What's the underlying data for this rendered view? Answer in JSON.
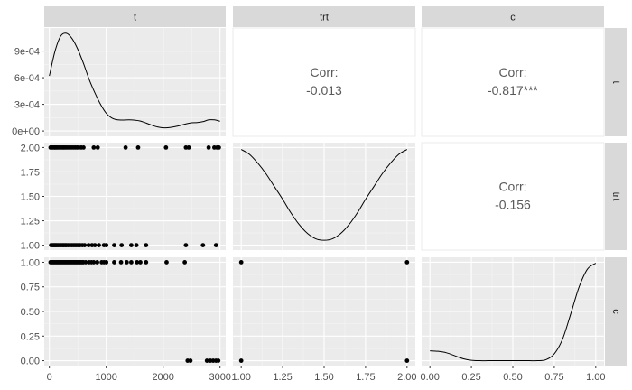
{
  "chart_data": {
    "type": "pairs",
    "variables": [
      "t",
      "trt",
      "c"
    ],
    "corr_label": "Corr:",
    "correlations": [
      {
        "row": "t",
        "col": "trt",
        "value": "-0.013"
      },
      {
        "row": "t",
        "col": "c",
        "value": "-0.817***"
      },
      {
        "row": "trt",
        "col": "c",
        "value": "-0.156"
      }
    ],
    "density_t": {
      "x": [
        0,
        100,
        200,
        300,
        400,
        500,
        600,
        700,
        800,
        900,
        1000,
        1100,
        1200,
        1300,
        1400,
        1500,
        1600,
        1700,
        1800,
        1900,
        2000,
        2100,
        2200,
        2300,
        2400,
        2500,
        2600,
        2700,
        2800,
        2900,
        3000
      ],
      "y": [
        0.00062,
        0.0009,
        0.00107,
        0.0011,
        0.00104,
        0.00092,
        0.00076,
        0.00058,
        0.00043,
        0.0003,
        0.0002,
        0.000145,
        0.000125,
        0.000123,
        0.000125,
        0.000122,
        0.000112,
        9e-05,
        6.5e-05,
        4.5e-05,
        3.5e-05,
        3.8e-05,
        4.8e-05,
        6.2e-05,
        8e-05,
        9.2e-05,
        9.5e-05,
        0.000105,
        0.000125,
        0.000125,
        0.00011
      ]
    },
    "density_trt": {
      "x": [
        1.0,
        1.05,
        1.1,
        1.15,
        1.2,
        1.25,
        1.3,
        1.35,
        1.4,
        1.45,
        1.5,
        1.55,
        1.6,
        1.65,
        1.7,
        1.75,
        1.8,
        1.85,
        1.9,
        1.95,
        2.0
      ],
      "y": [
        1.98,
        1.93,
        1.84,
        1.73,
        1.6,
        1.47,
        1.33,
        1.21,
        1.12,
        1.065,
        1.05,
        1.065,
        1.12,
        1.21,
        1.33,
        1.47,
        1.6,
        1.73,
        1.84,
        1.93,
        1.98
      ]
    },
    "density_c": {
      "x": [
        0.0,
        0.05,
        0.1,
        0.15,
        0.2,
        0.25,
        0.3,
        0.35,
        0.4,
        0.45,
        0.5,
        0.55,
        0.6,
        0.65,
        0.7,
        0.75,
        0.8,
        0.85,
        0.9,
        0.95,
        1.0
      ],
      "y": [
        0.1,
        0.095,
        0.08,
        0.05,
        0.02,
        0.004,
        0.0,
        0.0,
        0.0,
        0.0,
        0.0,
        0.0,
        0.0,
        0.0,
        0.01,
        0.07,
        0.22,
        0.48,
        0.75,
        0.93,
        0.99
      ]
    },
    "scatter_t_trt": {
      "x": [
        20,
        45,
        60,
        85,
        100,
        120,
        140,
        165,
        190,
        215,
        240,
        260,
        285,
        310,
        340,
        370,
        400,
        430,
        460,
        490,
        520,
        560,
        600,
        780,
        850,
        1340,
        1560,
        2050,
        2400,
        2450,
        2800,
        2900,
        2950,
        2980,
        30,
        55,
        75,
        95,
        115,
        135,
        160,
        185,
        210,
        235,
        255,
        280,
        300,
        330,
        360,
        390,
        420,
        450,
        480,
        510,
        540,
        580,
        620,
        690,
        750,
        800,
        870,
        960,
        1000,
        1140,
        1270,
        1440,
        1530,
        1700,
        2400,
        2700,
        2930
      ],
      "y": [
        2,
        2,
        2,
        2,
        2,
        2,
        2,
        2,
        2,
        2,
        2,
        2,
        2,
        2,
        2,
        2,
        2,
        2,
        2,
        2,
        2,
        2,
        2,
        2,
        2,
        2,
        2,
        2,
        2,
        2,
        2,
        2,
        2,
        2,
        1,
        1,
        1,
        1,
        1,
        1,
        1,
        1,
        1,
        1,
        1,
        1,
        1,
        1,
        1,
        1,
        1,
        1,
        1,
        1,
        1,
        1,
        1,
        1,
        1,
        1,
        1,
        1,
        1,
        1,
        1,
        1,
        1,
        1,
        1,
        1,
        1
      ]
    },
    "scatter_t_c": {
      "x": [
        20,
        40,
        60,
        80,
        100,
        120,
        140,
        160,
        180,
        200,
        220,
        240,
        260,
        280,
        300,
        320,
        340,
        360,
        380,
        400,
        420,
        440,
        460,
        480,
        500,
        520,
        540,
        560,
        580,
        600,
        640,
        700,
        740,
        780,
        840,
        920,
        960,
        1000,
        1140,
        1260,
        1360,
        1440,
        1540,
        1600,
        1700,
        2060,
        2380,
        2430,
        2480,
        2770,
        2830,
        2880,
        2930,
        2970
      ],
      "y": [
        1,
        1,
        1,
        1,
        1,
        1,
        1,
        1,
        1,
        1,
        1,
        1,
        1,
        1,
        1,
        1,
        1,
        1,
        1,
        1,
        1,
        1,
        1,
        1,
        1,
        1,
        1,
        1,
        1,
        1,
        1,
        1,
        1,
        1,
        1,
        1,
        1,
        1,
        1,
        1,
        1,
        1,
        1,
        1,
        1,
        1,
        1,
        0,
        0,
        0,
        0,
        0,
        0,
        0
      ]
    },
    "scatter_trt_c": {
      "x": [
        1,
        1,
        2,
        2
      ],
      "y": [
        1,
        0,
        1,
        0
      ]
    },
    "axes": {
      "t": {
        "range": [
          -90,
          3100
        ],
        "ticks": [
          0,
          1000,
          2000,
          3000
        ],
        "tick_labels": [
          "0",
          "1000",
          "2000",
          "3000"
        ]
      },
      "trt": {
        "range": [
          0.95,
          2.05
        ],
        "ticks": [
          1.0,
          1.25,
          1.5,
          1.75,
          2.0
        ],
        "tick_labels": [
          "1.00",
          "1.25",
          "1.50",
          "1.75",
          "2.00"
        ]
      },
      "c": {
        "range": [
          -0.05,
          1.05
        ],
        "ticks": [
          0.0,
          0.25,
          0.5,
          0.75,
          1.0
        ],
        "tick_labels": [
          "0.00",
          "0.25",
          "0.50",
          "0.75",
          "1.00"
        ]
      },
      "density_t_y": {
        "range": [
          -6e-05,
          0.00116
        ],
        "ticks": [
          0,
          0.0003,
          0.0006,
          0.0009
        ],
        "tick_labels": [
          "0e+00",
          "3e-04",
          "6e-04",
          "9e-04"
        ]
      }
    },
    "grid": true,
    "colors": {
      "panel_bg": "#ebebeb",
      "grid_major": "#ffffff",
      "grid_minor": "#f5f5f5",
      "strip_bg": "#d9d9d9",
      "point": "#000000",
      "line": "#000000",
      "corr_text": "#595959",
      "tick_text": "#4d4d4d"
    }
  }
}
